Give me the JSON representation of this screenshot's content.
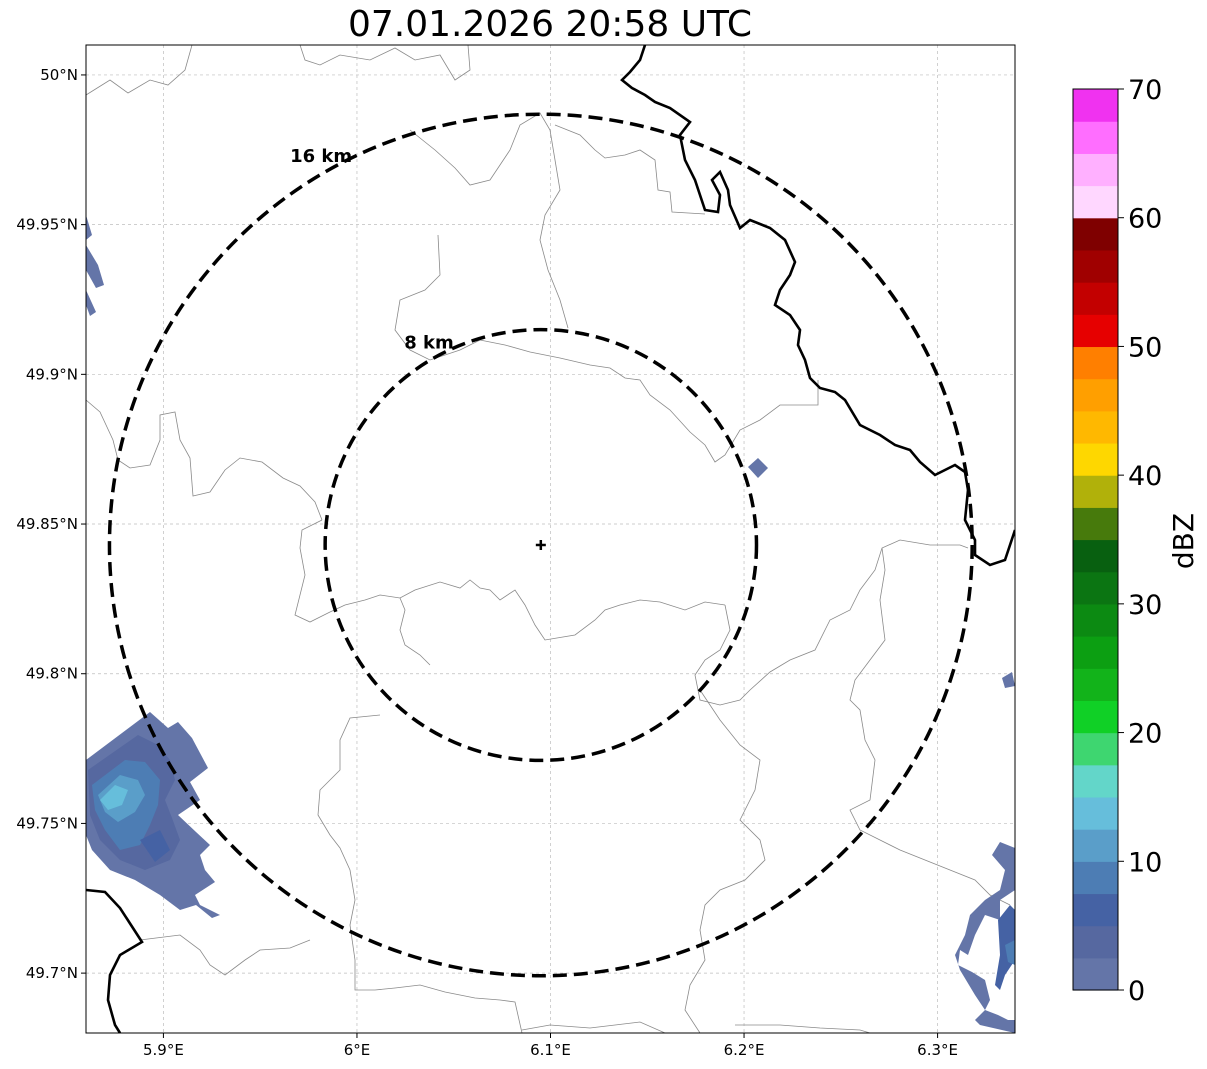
{
  "map": {
    "title": "07.01.2026 20:58 UTC",
    "lon_range": [
      5.86,
      6.34
    ],
    "lat_range": [
      49.68,
      50.01
    ],
    "lon_ticks": [
      {
        "value": 5.9,
        "label": "5.9°E"
      },
      {
        "value": 6.0,
        "label": "6°E"
      },
      {
        "value": 6.1,
        "label": "6.1°E"
      },
      {
        "value": 6.2,
        "label": "6.2°E"
      },
      {
        "value": 6.3,
        "label": "6.3°E"
      }
    ],
    "lat_ticks": [
      {
        "value": 50.0,
        "label": "50°N"
      },
      {
        "value": 49.95,
        "label": "49.95°N"
      },
      {
        "value": 49.9,
        "label": "49.9°N"
      },
      {
        "value": 49.85,
        "label": "49.85°N"
      },
      {
        "value": 49.8,
        "label": "49.8°N"
      },
      {
        "value": 49.75,
        "label": "49.75°N"
      },
      {
        "value": 49.7,
        "label": "49.7°N"
      }
    ],
    "site": {
      "lon": 6.095,
      "lat": 49.843
    },
    "range_rings": [
      {
        "radius_km": 8,
        "label": "8 km"
      },
      {
        "radius_km": 16,
        "label": "16 km"
      }
    ],
    "gridlines": true
  },
  "colorbar": {
    "label": "dBZ",
    "min": 0,
    "max": 70,
    "ticks": [
      0,
      10,
      20,
      30,
      40,
      50,
      60,
      70
    ],
    "colors": [
      "#6475a8",
      "#5668a0",
      "#4562a4",
      "#4d7db4",
      "#5a9ec9",
      "#66bedb",
      "#63d6c9",
      "#3ed670",
      "#10d026",
      "#12b31a",
      "#0c9f12",
      "#0c8a12",
      "#0b7512",
      "#086010",
      "#477a0c",
      "#b1b10a",
      "#fed700",
      "#ffb800",
      "#ff9f00",
      "#ff7f00",
      "#e60000",
      "#c30000",
      "#a00000",
      "#7f0000",
      "#ffd7ff",
      "#ffb0ff",
      "#ff6eff",
      "#f032f0"
    ]
  }
}
